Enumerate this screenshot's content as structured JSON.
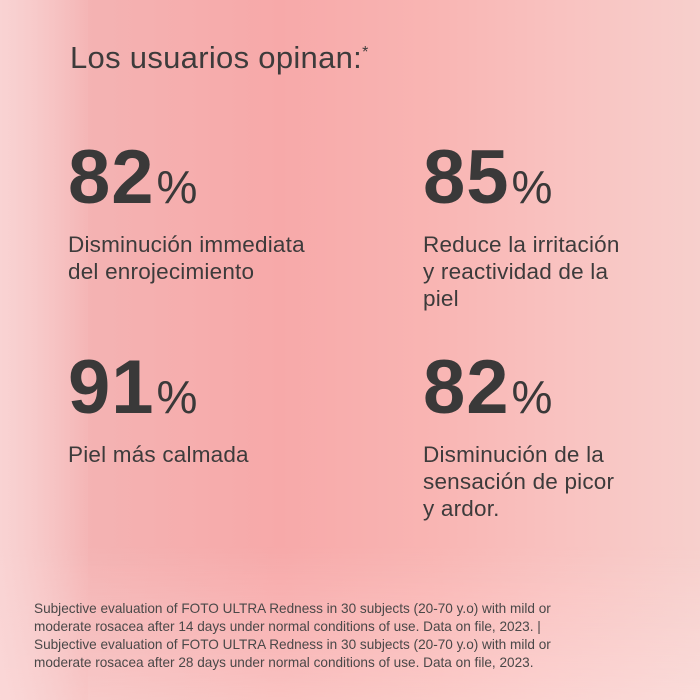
{
  "title": "Los usuarios opinan:",
  "title_mark": "*",
  "stats": [
    {
      "value": "82",
      "unit": "%",
      "lines": [
        "Disminución immediata",
        "del enrojecimiento"
      ]
    },
    {
      "value": "85",
      "unit": "%",
      "lines": [
        "Reduce la irritación",
        "y reactividad de la",
        "piel"
      ]
    },
    {
      "value": "91",
      "unit": "%",
      "lines": [
        "Piel más calmada"
      ]
    },
    {
      "value": "82",
      "unit": "%",
      "lines": [
        "Disminución de la",
        "sensación de picor",
        "y ardor."
      ]
    }
  ],
  "footnote": [
    "Subjective evaluation of FOTO ULTRA Redness in 30 subjects (20-70 y.o) with mild or",
    "moderate rosacea after 14 days under normal conditions of use. Data on file, 2023. |",
    "Subjective evaluation of FOTO ULTRA Redness in 30 subjects (20-70 y.o) with mild or",
    "moderate rosacea after 28 days under normal conditions of use. Data on file, 2023."
  ],
  "colors": {
    "text": "#3a3939",
    "background": "#f7a9a9"
  }
}
